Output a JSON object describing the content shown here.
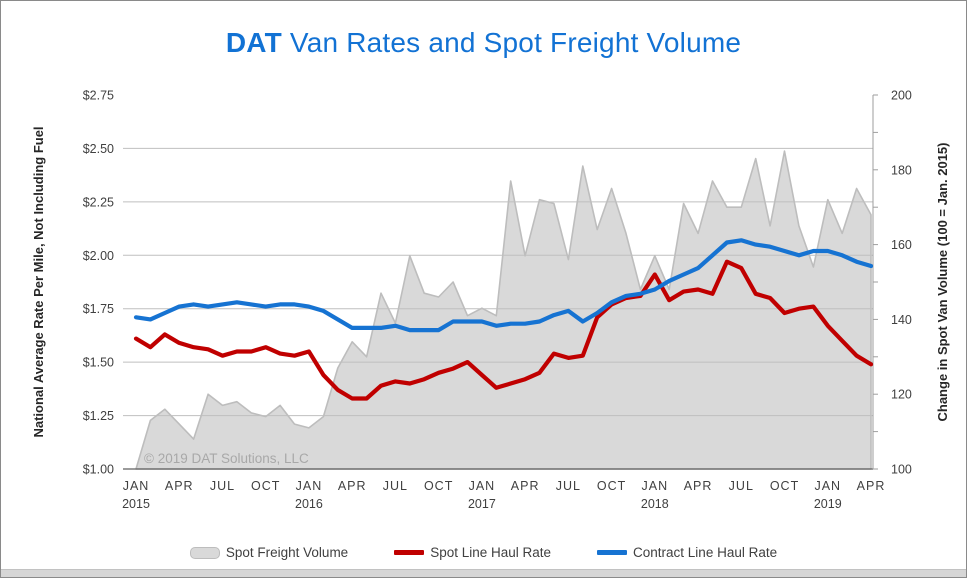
{
  "header": {
    "brand": "DAT",
    "title": " Van Rates and Spot Freight Volume"
  },
  "watermark": "© 2019 DAT Solutions, LLC",
  "colors": {
    "title_blue": "#1272d4",
    "contract_blue": "#1673d2",
    "spot_red": "#c00000",
    "volume_fill": "#d9d9d9",
    "volume_stroke": "#bdbdbd",
    "gridline": "#bfbfbf",
    "axis_dark": "#5f5f5f",
    "axis_gray": "#9e9e9e",
    "tick_text": "#404040",
    "watermark_gray": "#a8a8a8"
  },
  "left_axis": {
    "title": "National Average Rate Per Mile, Not Including Fuel",
    "tick_labels": [
      "$1.00",
      "$1.25",
      "$1.50",
      "$1.75",
      "$2.00",
      "$2.25",
      "$2.50",
      "$2.75"
    ],
    "min": 1.0,
    "max": 2.75,
    "step": 0.25,
    "gridlines_at": [
      1.25,
      1.5,
      1.75,
      2.0,
      2.25,
      2.5
    ]
  },
  "right_axis": {
    "title": "Change in Spot Van Volume (100 = Jan. 2015)",
    "tick_labels": [
      "100",
      "120",
      "140",
      "160",
      "180",
      "200"
    ],
    "min": 100,
    "max": 200,
    "major_step": 20,
    "minor_step": 10
  },
  "x_axis": {
    "tick_labels": [
      {
        "month": "JAN",
        "year": "2015"
      },
      {
        "month": "APR",
        "year": ""
      },
      {
        "month": "JUL",
        "year": ""
      },
      {
        "month": "OCT",
        "year": ""
      },
      {
        "month": "JAN",
        "year": "2016"
      },
      {
        "month": "APR",
        "year": ""
      },
      {
        "month": "JUL",
        "year": ""
      },
      {
        "month": "OCT",
        "year": ""
      },
      {
        "month": "JAN",
        "year": "2017"
      },
      {
        "month": "APR",
        "year": ""
      },
      {
        "month": "JUL",
        "year": ""
      },
      {
        "month": "OCT",
        "year": ""
      },
      {
        "month": "JAN",
        "year": "2018"
      },
      {
        "month": "APR",
        "year": ""
      },
      {
        "month": "JUL",
        "year": ""
      },
      {
        "month": "OCT",
        "year": ""
      },
      {
        "month": "JAN",
        "year": "2019"
      },
      {
        "month": "APR",
        "year": ""
      }
    ]
  },
  "legend": [
    {
      "label": "Spot Freight Volume",
      "type": "area",
      "color": "#d9d9d9"
    },
    {
      "label": "Spot Line Haul Rate",
      "type": "line",
      "color": "#c00000"
    },
    {
      "label": "Contract Line Haul Rate",
      "type": "line",
      "color": "#1673d2"
    }
  ],
  "chart_data": {
    "type": "combo",
    "subtypes": [
      "area",
      "line",
      "line"
    ],
    "months": [
      "2015-01",
      "2015-02",
      "2015-03",
      "2015-04",
      "2015-05",
      "2015-06",
      "2015-07",
      "2015-08",
      "2015-09",
      "2015-10",
      "2015-11",
      "2015-12",
      "2016-01",
      "2016-02",
      "2016-03",
      "2016-04",
      "2016-05",
      "2016-06",
      "2016-07",
      "2016-08",
      "2016-09",
      "2016-10",
      "2016-11",
      "2016-12",
      "2017-01",
      "2017-02",
      "2017-03",
      "2017-04",
      "2017-05",
      "2017-06",
      "2017-07",
      "2017-08",
      "2017-09",
      "2017-10",
      "2017-11",
      "2017-12",
      "2018-01",
      "2018-02",
      "2018-03",
      "2018-04",
      "2018-05",
      "2018-06",
      "2018-07",
      "2018-08",
      "2018-09",
      "2018-10",
      "2018-11",
      "2018-12",
      "2019-01",
      "2019-02",
      "2019-03",
      "2019-04"
    ],
    "series": [
      {
        "name": "Spot Freight Volume",
        "type": "area",
        "axis": "right",
        "baseline": 100,
        "values": [
          100,
          113,
          116,
          112,
          108,
          120,
          117,
          118,
          115,
          114,
          117,
          112,
          111,
          114,
          127,
          134,
          130,
          147,
          139,
          157,
          147,
          146,
          150,
          141,
          143,
          141,
          177,
          157,
          172,
          171,
          156,
          181,
          164,
          175,
          163,
          148,
          157,
          148,
          171,
          163,
          177,
          170,
          170,
          183,
          165,
          185,
          165,
          154,
          172,
          163,
          175,
          168
        ]
      },
      {
        "name": "Spot Line Haul Rate",
        "type": "line",
        "axis": "left",
        "values": [
          1.61,
          1.57,
          1.63,
          1.59,
          1.57,
          1.56,
          1.53,
          1.55,
          1.55,
          1.57,
          1.54,
          1.53,
          1.55,
          1.44,
          1.37,
          1.33,
          1.33,
          1.39,
          1.41,
          1.4,
          1.42,
          1.45,
          1.47,
          1.5,
          1.44,
          1.38,
          1.4,
          1.42,
          1.45,
          1.54,
          1.52,
          1.53,
          1.71,
          1.77,
          1.8,
          1.81,
          1.91,
          1.79,
          1.83,
          1.84,
          1.82,
          1.97,
          1.94,
          1.82,
          1.8,
          1.73,
          1.75,
          1.76,
          1.67,
          1.6,
          1.53,
          1.49
        ]
      },
      {
        "name": "Contract Line Haul Rate",
        "type": "line",
        "axis": "left",
        "values": [
          1.71,
          1.7,
          1.73,
          1.76,
          1.77,
          1.76,
          1.77,
          1.78,
          1.77,
          1.76,
          1.77,
          1.77,
          1.76,
          1.74,
          1.7,
          1.66,
          1.66,
          1.66,
          1.67,
          1.65,
          1.65,
          1.65,
          1.69,
          1.69,
          1.69,
          1.67,
          1.68,
          1.68,
          1.69,
          1.72,
          1.74,
          1.69,
          1.73,
          1.78,
          1.81,
          1.82,
          1.84,
          1.88,
          1.91,
          1.94,
          2.0,
          2.06,
          2.07,
          2.05,
          2.04,
          2.02,
          2.0,
          2.02,
          2.02,
          2.0,
          1.97,
          1.95
        ]
      }
    ],
    "left_ylim": [
      1.0,
      2.75
    ],
    "right_ylim": [
      100,
      200
    ],
    "grid": true,
    "legend_position": "bottom"
  }
}
